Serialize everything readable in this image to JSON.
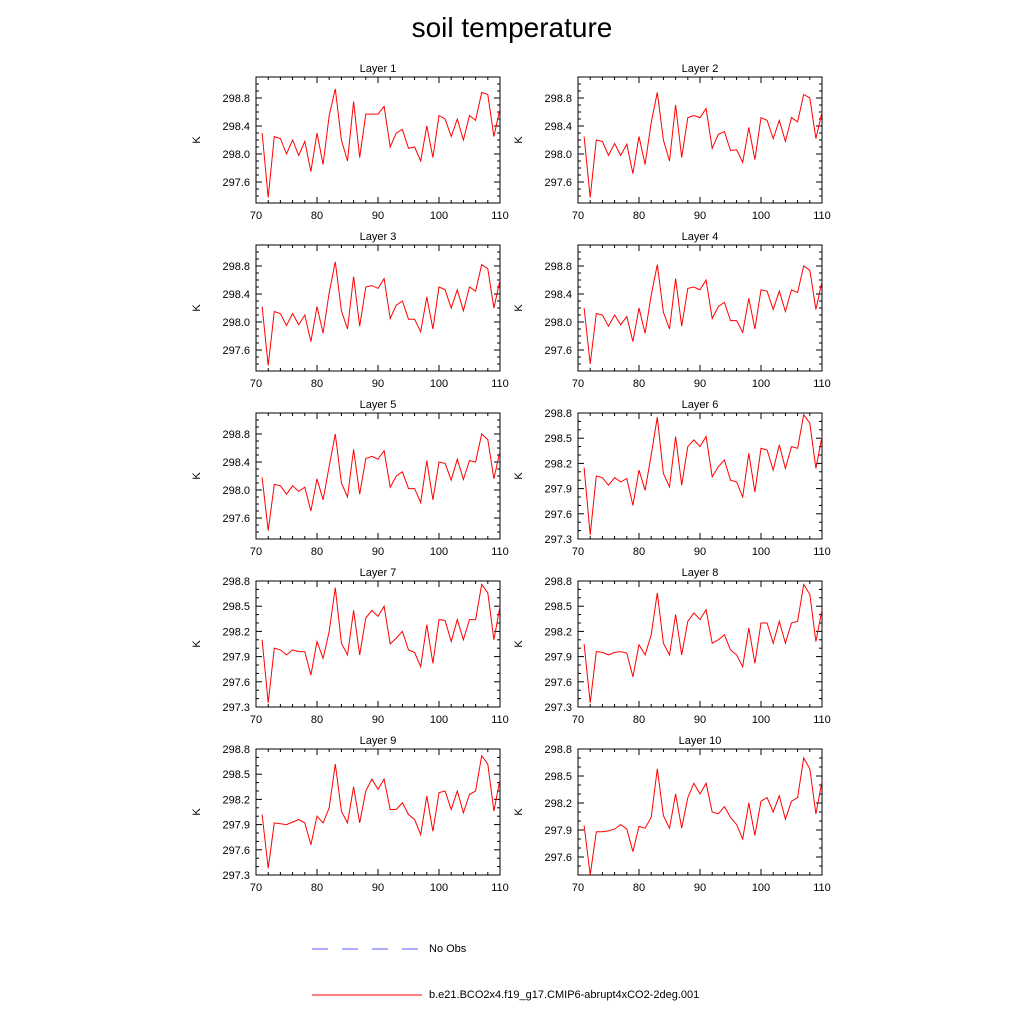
{
  "title": "soil temperature",
  "colors": {
    "model_line": "#ff0000",
    "obs_line": "#5a5aff",
    "axis": "#000000"
  },
  "legend": {
    "items": [
      {
        "label": "No Obs",
        "style": "dashed",
        "color": "#5a5aff"
      },
      {
        "label": "b.e21.BCO2x4.f19_g17.CMIP6-abrupt4xCO2-2deg.001",
        "style": "solid",
        "color": "#ff0000"
      }
    ]
  },
  "chart_data": [
    {
      "type": "line",
      "title": "Layer 1",
      "ylabel": "K",
      "xlim": [
        70,
        110
      ],
      "ylim": [
        297.3,
        299.1
      ],
      "xticks": [
        70,
        80,
        90,
        100,
        110
      ],
      "yticks": [
        297.6,
        298.0,
        298.4,
        298.8
      ],
      "series": [
        {
          "x": [
            71,
            72,
            73,
            74,
            75,
            76,
            77,
            78,
            79,
            80,
            81,
            82,
            83,
            84,
            85,
            86,
            87,
            88,
            89,
            90,
            91,
            92,
            93,
            94,
            95,
            96,
            97,
            98,
            99,
            100,
            101,
            102,
            103,
            104,
            105,
            106,
            107,
            108,
            109,
            110
          ],
          "values": [
            298.3,
            297.38,
            298.25,
            298.22,
            298.0,
            298.2,
            297.98,
            298.18,
            297.75,
            298.3,
            297.85,
            298.55,
            298.93,
            298.2,
            297.9,
            298.75,
            297.95,
            298.57,
            298.57,
            298.57,
            298.68,
            298.1,
            298.3,
            298.35,
            298.08,
            298.1,
            297.9,
            298.4,
            297.95,
            298.55,
            298.5,
            298.25,
            298.5,
            298.2,
            298.55,
            298.48,
            298.88,
            298.85,
            298.25,
            298.65
          ]
        }
      ]
    },
    {
      "type": "line",
      "title": "Layer 2",
      "ylabel": "K",
      "xlim": [
        70,
        110
      ],
      "ylim": [
        297.3,
        299.1
      ],
      "xticks": [
        70,
        80,
        90,
        100,
        110
      ],
      "yticks": [
        297.6,
        298.0,
        298.4,
        298.8
      ],
      "series": [
        {
          "x": [
            71,
            72,
            73,
            74,
            75,
            76,
            77,
            78,
            79,
            80,
            81,
            82,
            83,
            84,
            85,
            86,
            87,
            88,
            89,
            90,
            91,
            92,
            93,
            94,
            95,
            96,
            97,
            98,
            99,
            100,
            101,
            102,
            103,
            104,
            105,
            106,
            107,
            108,
            109,
            110
          ],
          "values": [
            298.25,
            297.38,
            298.2,
            298.18,
            297.98,
            298.15,
            297.98,
            298.14,
            297.72,
            298.25,
            297.85,
            298.45,
            298.88,
            298.2,
            297.9,
            298.7,
            297.95,
            298.52,
            298.55,
            298.52,
            298.65,
            298.08,
            298.28,
            298.32,
            298.05,
            298.06,
            297.88,
            298.38,
            297.92,
            298.52,
            298.48,
            298.22,
            298.48,
            298.18,
            298.52,
            298.46,
            298.85,
            298.8,
            298.22,
            298.6
          ]
        }
      ]
    },
    {
      "type": "line",
      "title": "Layer 3",
      "ylabel": "K",
      "xlim": [
        70,
        110
      ],
      "ylim": [
        297.3,
        299.1
      ],
      "xticks": [
        70,
        80,
        90,
        100,
        110
      ],
      "yticks": [
        297.6,
        298.0,
        298.4,
        298.8
      ],
      "series": [
        {
          "x": [
            71,
            72,
            73,
            74,
            75,
            76,
            77,
            78,
            79,
            80,
            81,
            82,
            83,
            84,
            85,
            86,
            87,
            88,
            89,
            90,
            91,
            92,
            93,
            94,
            95,
            96,
            97,
            98,
            99,
            100,
            101,
            102,
            103,
            104,
            105,
            106,
            107,
            108,
            109,
            110
          ],
          "values": [
            298.22,
            297.38,
            298.15,
            298.12,
            297.95,
            298.12,
            297.96,
            298.1,
            297.72,
            298.22,
            297.84,
            298.42,
            298.86,
            298.16,
            297.9,
            298.65,
            297.94,
            298.5,
            298.52,
            298.48,
            298.62,
            298.05,
            298.24,
            298.3,
            298.04,
            298.04,
            297.86,
            298.36,
            297.9,
            298.5,
            298.46,
            298.2,
            298.46,
            298.16,
            298.5,
            298.44,
            298.82,
            298.76,
            298.2,
            298.6
          ]
        }
      ]
    },
    {
      "type": "line",
      "title": "Layer 4",
      "ylabel": "K",
      "xlim": [
        70,
        110
      ],
      "ylim": [
        297.3,
        299.1
      ],
      "xticks": [
        70,
        80,
        90,
        100,
        110
      ],
      "yticks": [
        297.6,
        298.0,
        298.4,
        298.8
      ],
      "series": [
        {
          "x": [
            71,
            72,
            73,
            74,
            75,
            76,
            77,
            78,
            79,
            80,
            81,
            82,
            83,
            84,
            85,
            86,
            87,
            88,
            89,
            90,
            91,
            92,
            93,
            94,
            95,
            96,
            97,
            98,
            99,
            100,
            101,
            102,
            103,
            104,
            105,
            106,
            107,
            108,
            109,
            110
          ],
          "values": [
            298.2,
            297.4,
            298.12,
            298.1,
            297.94,
            298.1,
            297.96,
            298.08,
            297.72,
            298.2,
            297.84,
            298.38,
            298.82,
            298.14,
            297.9,
            298.62,
            297.94,
            298.48,
            298.5,
            298.46,
            298.6,
            298.05,
            298.22,
            298.28,
            298.02,
            298.02,
            297.85,
            298.34,
            297.9,
            298.46,
            298.44,
            298.18,
            298.44,
            298.15,
            298.46,
            298.42,
            298.8,
            298.74,
            298.18,
            298.58
          ]
        }
      ]
    },
    {
      "type": "line",
      "title": "Layer 5",
      "ylabel": "K",
      "xlim": [
        70,
        110
      ],
      "ylim": [
        297.3,
        299.1
      ],
      "xticks": [
        70,
        80,
        90,
        100,
        110
      ],
      "yticks": [
        297.6,
        298.0,
        298.4,
        298.8
      ],
      "series": [
        {
          "x": [
            71,
            72,
            73,
            74,
            75,
            76,
            77,
            78,
            79,
            80,
            81,
            82,
            83,
            84,
            85,
            86,
            87,
            88,
            89,
            90,
            91,
            92,
            93,
            94,
            95,
            96,
            97,
            98,
            99,
            100,
            101,
            102,
            103,
            104,
            105,
            106,
            107,
            108,
            109,
            110
          ],
          "values": [
            298.18,
            297.42,
            298.08,
            298.06,
            297.94,
            298.06,
            297.98,
            298.04,
            297.7,
            298.16,
            297.86,
            298.34,
            298.8,
            298.1,
            297.9,
            298.58,
            297.94,
            298.45,
            298.48,
            298.44,
            298.56,
            298.04,
            298.2,
            298.26,
            298.02,
            298.02,
            297.82,
            298.42,
            297.86,
            298.4,
            298.38,
            298.14,
            298.44,
            298.15,
            298.42,
            298.4,
            298.8,
            298.72,
            298.16,
            298.56
          ]
        }
      ]
    },
    {
      "type": "line",
      "title": "Layer 6",
      "ylabel": "K",
      "xlim": [
        70,
        110
      ],
      "ylim": [
        297.3,
        298.8
      ],
      "xticks": [
        70,
        80,
        90,
        100,
        110
      ],
      "yticks": [
        297.3,
        297.6,
        297.9,
        298.2,
        298.5,
        298.8
      ],
      "series": [
        {
          "x": [
            71,
            72,
            73,
            74,
            75,
            76,
            77,
            78,
            79,
            80,
            81,
            82,
            83,
            84,
            85,
            86,
            87,
            88,
            89,
            90,
            91,
            92,
            93,
            94,
            95,
            96,
            97,
            98,
            99,
            100,
            101,
            102,
            103,
            104,
            105,
            106,
            107,
            108,
            109,
            110
          ],
          "values": [
            298.15,
            297.35,
            298.05,
            298.03,
            297.94,
            298.03,
            297.98,
            298.02,
            297.7,
            298.12,
            297.88,
            298.3,
            298.75,
            298.08,
            297.92,
            298.52,
            297.94,
            298.4,
            298.48,
            298.4,
            298.52,
            298.04,
            298.16,
            298.24,
            298.0,
            297.98,
            297.8,
            298.32,
            297.86,
            298.38,
            298.36,
            298.12,
            298.42,
            298.14,
            298.4,
            298.38,
            298.78,
            298.68,
            298.14,
            298.52
          ]
        }
      ]
    },
    {
      "type": "line",
      "title": "Layer 7",
      "ylabel": "K",
      "xlim": [
        70,
        110
      ],
      "ylim": [
        297.3,
        298.8
      ],
      "xticks": [
        70,
        80,
        90,
        100,
        110
      ],
      "yticks": [
        297.3,
        297.6,
        297.9,
        298.2,
        298.5,
        298.8
      ],
      "series": [
        {
          "x": [
            71,
            72,
            73,
            74,
            75,
            76,
            77,
            78,
            79,
            80,
            81,
            82,
            83,
            84,
            85,
            86,
            87,
            88,
            89,
            90,
            91,
            92,
            93,
            94,
            95,
            96,
            97,
            98,
            99,
            100,
            101,
            102,
            103,
            104,
            105,
            106,
            107,
            108,
            109,
            110
          ],
          "values": [
            298.1,
            297.35,
            298.0,
            297.98,
            297.92,
            297.98,
            297.96,
            297.96,
            297.68,
            298.08,
            297.88,
            298.2,
            298.72,
            298.06,
            297.92,
            298.45,
            297.92,
            298.36,
            298.45,
            298.38,
            298.5,
            298.05,
            298.12,
            298.2,
            297.98,
            297.95,
            297.78,
            298.28,
            297.82,
            298.34,
            298.33,
            298.08,
            298.34,
            298.1,
            298.34,
            298.34,
            298.76,
            298.66,
            298.1,
            298.5
          ]
        }
      ]
    },
    {
      "type": "line",
      "title": "Layer 8",
      "ylabel": "K",
      "xlim": [
        70,
        110
      ],
      "ylim": [
        297.3,
        298.8
      ],
      "xticks": [
        70,
        80,
        90,
        100,
        110
      ],
      "yticks": [
        297.3,
        297.6,
        297.9,
        298.2,
        298.5,
        298.8
      ],
      "series": [
        {
          "x": [
            71,
            72,
            73,
            74,
            75,
            76,
            77,
            78,
            79,
            80,
            81,
            82,
            83,
            84,
            85,
            86,
            87,
            88,
            89,
            90,
            91,
            92,
            93,
            94,
            95,
            96,
            97,
            98,
            99,
            100,
            101,
            102,
            103,
            104,
            105,
            106,
            107,
            108,
            109,
            110
          ],
          "values": [
            298.05,
            297.35,
            297.96,
            297.95,
            297.92,
            297.95,
            297.96,
            297.94,
            297.66,
            298.04,
            297.92,
            298.16,
            298.66,
            298.06,
            297.92,
            298.4,
            297.92,
            298.32,
            298.42,
            298.34,
            298.46,
            298.06,
            298.1,
            298.16,
            297.98,
            297.92,
            297.78,
            298.24,
            297.82,
            298.3,
            298.3,
            298.06,
            298.32,
            298.06,
            298.3,
            298.32,
            298.76,
            298.64,
            298.08,
            298.46
          ]
        }
      ]
    },
    {
      "type": "line",
      "title": "Layer 9",
      "ylabel": "K",
      "xlim": [
        70,
        110
      ],
      "ylim": [
        297.3,
        298.8
      ],
      "xticks": [
        70,
        80,
        90,
        100,
        110
      ],
      "yticks": [
        297.3,
        297.6,
        297.9,
        298.2,
        298.5,
        298.8
      ],
      "series": [
        {
          "x": [
            71,
            72,
            73,
            74,
            75,
            76,
            77,
            78,
            79,
            80,
            81,
            82,
            83,
            84,
            85,
            86,
            87,
            88,
            89,
            90,
            91,
            92,
            93,
            94,
            95,
            96,
            97,
            98,
            99,
            100,
            101,
            102,
            103,
            104,
            105,
            106,
            107,
            108,
            109,
            110
          ],
          "values": [
            298.02,
            297.38,
            297.92,
            297.91,
            297.9,
            297.93,
            297.96,
            297.92,
            297.66,
            298.0,
            297.92,
            298.1,
            298.62,
            298.06,
            297.92,
            298.35,
            297.92,
            298.3,
            298.44,
            298.32,
            298.44,
            298.08,
            298.08,
            298.16,
            298.02,
            297.96,
            297.78,
            298.24,
            297.82,
            298.28,
            298.3,
            298.08,
            298.3,
            298.04,
            298.26,
            298.3,
            298.72,
            298.62,
            298.06,
            298.44
          ]
        }
      ]
    },
    {
      "type": "line",
      "title": "Layer 10",
      "ylabel": "K",
      "xlim": [
        70,
        110
      ],
      "ylim": [
        297.4,
        298.8
      ],
      "xticks": [
        70,
        80,
        90,
        100,
        110
      ],
      "yticks": [
        297.6,
        297.9,
        298.2,
        298.5,
        298.8
      ],
      "series": [
        {
          "x": [
            71,
            72,
            73,
            74,
            75,
            76,
            77,
            78,
            79,
            80,
            81,
            82,
            83,
            84,
            85,
            86,
            87,
            88,
            89,
            90,
            91,
            92,
            93,
            94,
            95,
            96,
            97,
            98,
            99,
            100,
            101,
            102,
            103,
            104,
            105,
            106,
            107,
            108,
            109,
            110
          ],
          "values": [
            297.95,
            297.4,
            297.88,
            297.88,
            297.89,
            297.91,
            297.96,
            297.91,
            297.66,
            297.94,
            297.92,
            298.04,
            298.58,
            298.06,
            297.92,
            298.3,
            297.92,
            298.26,
            298.42,
            298.3,
            298.42,
            298.1,
            298.08,
            298.16,
            298.04,
            297.96,
            297.8,
            298.2,
            297.84,
            298.22,
            298.26,
            298.1,
            298.28,
            298.02,
            298.22,
            298.26,
            298.7,
            298.58,
            298.08,
            298.44
          ]
        }
      ]
    }
  ]
}
